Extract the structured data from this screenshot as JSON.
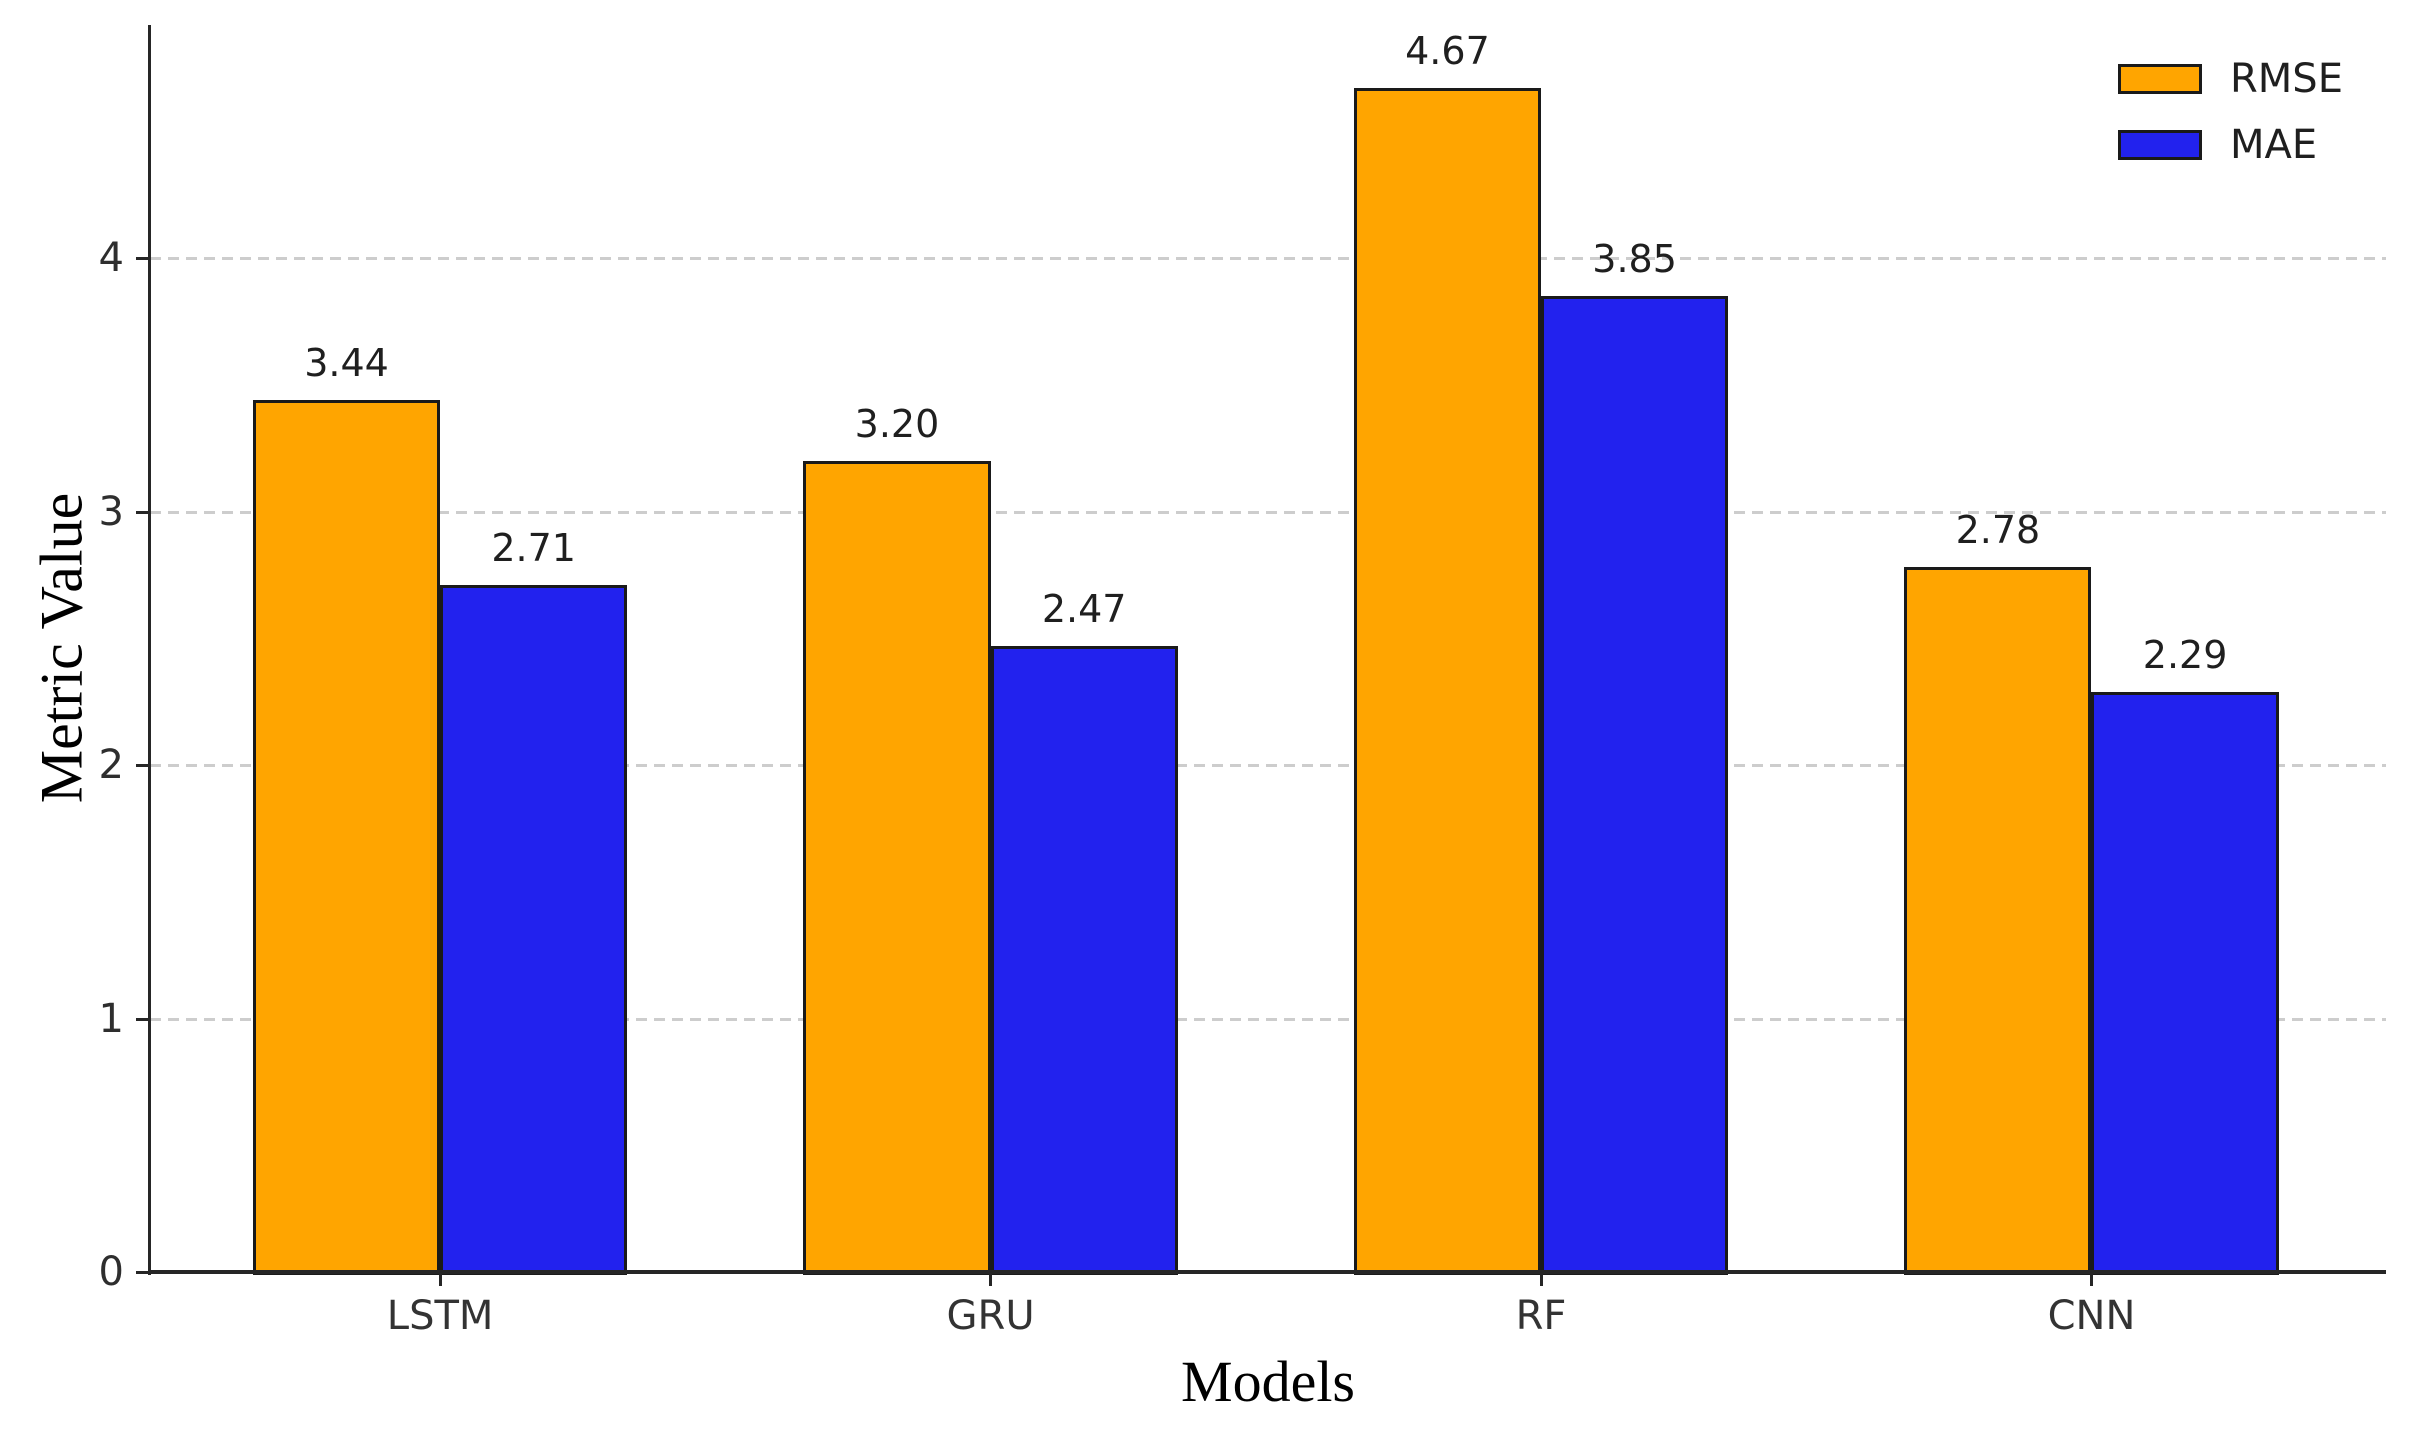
{
  "chart_data": {
    "type": "bar",
    "title": "",
    "categories": [
      "LSTM",
      "GRU",
      "RF",
      "CNN"
    ],
    "series": [
      {
        "name": "RMSE",
        "color": "#FFA500",
        "values": [
          3.44,
          3.2,
          4.67,
          2.78
        ],
        "labels": [
          "3.44",
          "3.20",
          "4.67",
          "2.78"
        ]
      },
      {
        "name": "MAE",
        "color": "#2222EE",
        "values": [
          2.71,
          2.47,
          3.85,
          2.29
        ],
        "labels": [
          "2.71",
          "2.47",
          "3.85",
          "2.29"
        ]
      }
    ],
    "xlabel": "Models",
    "ylabel": "Metric Value",
    "ylim": [
      0,
      4.92
    ],
    "yticks": [
      0,
      1,
      2,
      3,
      4
    ],
    "ytick_labels": [
      "0",
      "1",
      "2",
      "3",
      "4"
    ],
    "grid": {
      "axis": "y",
      "style": "dashed",
      "color": "#cdcdcd"
    },
    "legend": {
      "position": "upper right",
      "frame": false,
      "entries": [
        "RMSE",
        "MAE"
      ]
    },
    "bar_edge_color": "#1a1a1a",
    "spine_color": "#262626",
    "background_color": "#ffffff",
    "value_labels_shown": true
  }
}
